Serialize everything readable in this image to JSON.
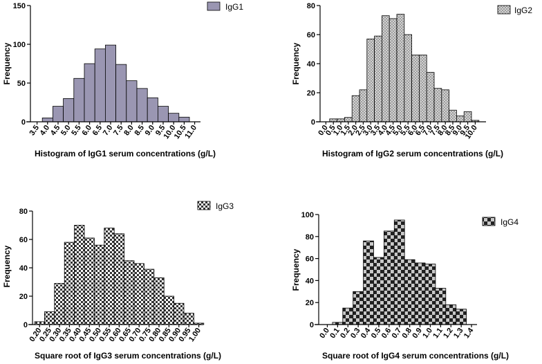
{
  "chart_data": [
    {
      "type": "bar",
      "title": "",
      "legend": "IgG1",
      "legend_position": "top-right",
      "xlabel": "Histogram of IgG1 serum concentrations (g/L)",
      "ylabel": "Frequency",
      "ylim": [
        0,
        150
      ],
      "yticks": [
        0,
        50,
        100,
        150
      ],
      "fill": "purple-gray",
      "color": "#9a96b2",
      "categories": [
        "3.5",
        "4.0",
        "4.5",
        "5.0",
        "5.5",
        "6.0",
        "6.5",
        "7.0",
        "7.5",
        "8.0",
        "8.5",
        "9.0",
        "9.5",
        "10.0",
        "10.5",
        "11.0"
      ],
      "values": [
        0,
        5,
        20,
        30,
        56,
        75,
        94,
        99,
        74,
        53,
        43,
        31,
        20,
        11,
        6,
        0
      ]
    },
    {
      "type": "bar",
      "title": "",
      "legend": "IgG2",
      "legend_position": "top-right",
      "xlabel": "Histogram of IgG2 serum concentrations (g/L)",
      "ylabel": "Frequency",
      "ylim": [
        0,
        80
      ],
      "yticks": [
        0,
        20,
        40,
        60,
        80
      ],
      "fill": "dotted",
      "color": "#d0d0d0",
      "categories": [
        "0.0",
        "0.5",
        "1.0",
        "1.5",
        "2.0",
        "2.5",
        "3.0",
        "3.5",
        "4.0",
        "4.5",
        "5.0",
        "5.5",
        "6.0",
        "6.5",
        "7.0",
        "7.5",
        "8.0",
        "8.5",
        "9.0",
        "9.5",
        "10.0"
      ],
      "values": [
        0,
        2,
        2,
        3,
        18,
        22,
        57,
        59,
        73,
        71,
        74,
        60,
        46,
        46,
        34,
        23,
        22,
        8,
        4,
        7,
        1
      ]
    },
    {
      "type": "bar",
      "title": "",
      "legend": "IgG3",
      "legend_position": "top-right",
      "xlabel": "Square root of IgG3 serum concentrations (g/L)",
      "ylabel": "Frequency",
      "ylim": [
        0,
        80
      ],
      "yticks": [
        0,
        20,
        40,
        60,
        80
      ],
      "fill": "fine-checkered",
      "color": "#555555",
      "categories": [
        "0.20",
        "0.25",
        "0.30",
        "0.35",
        "0.40",
        "0.45",
        "0.50",
        "0.55",
        "0.60",
        "0.65",
        "0.70",
        "0.75",
        "0.80",
        "0.85",
        "0.90",
        "0.95",
        "1.00"
      ],
      "values": [
        2,
        9,
        29,
        58,
        70,
        61,
        56,
        68,
        64,
        45,
        43,
        39,
        33,
        20,
        15,
        8,
        1
      ]
    },
    {
      "type": "bar",
      "title": "",
      "legend": "IgG4",
      "legend_position": "top-right",
      "xlabel": "Square root of IgG4 serum concentrations (g/L)",
      "ylabel": "Frequency",
      "ylim": [
        0,
        100
      ],
      "yticks": [
        0,
        20,
        40,
        60,
        80,
        100
      ],
      "fill": "coarse-checkered",
      "color": "#444444",
      "categories": [
        "0.0",
        "0.1",
        "0.2",
        "0.3",
        "0.4",
        "0.5",
        "0.6",
        "0.7",
        "0.8",
        "0.9",
        "1.0",
        "1.1",
        "1.2",
        "1.3",
        "1.4"
      ],
      "values": [
        0,
        2,
        15,
        30,
        76,
        61,
        85,
        95,
        59,
        56,
        55,
        33,
        18,
        14,
        0
      ]
    }
  ]
}
